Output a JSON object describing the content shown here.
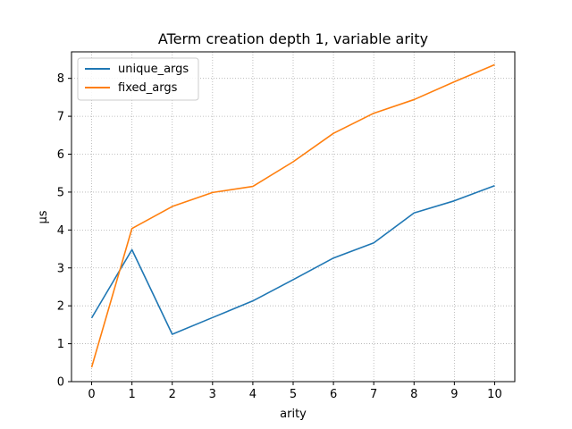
{
  "chart_data": {
    "type": "line",
    "title": "ATerm creation depth 1, variable arity",
    "xlabel": "arity",
    "ylabel": "µs",
    "x": [
      0,
      1,
      2,
      3,
      4,
      5,
      6,
      7,
      8,
      9,
      10
    ],
    "xlim": [
      -0.5,
      10.5
    ],
    "ylim": [
      0,
      8.7
    ],
    "xticks": [
      0,
      1,
      2,
      3,
      4,
      5,
      6,
      7,
      8,
      9,
      10
    ],
    "yticks": [
      0,
      1,
      2,
      3,
      4,
      5,
      6,
      7,
      8
    ],
    "grid": true,
    "legend_position": "top-left",
    "series": [
      {
        "name": "unique_args",
        "color": "#1f77b4",
        "values": [
          1.68,
          3.48,
          1.25,
          1.69,
          2.13,
          2.69,
          3.26,
          3.66,
          4.45,
          4.77,
          5.17
        ]
      },
      {
        "name": "fixed_args",
        "color": "#ff7f0e",
        "values": [
          0.38,
          4.04,
          4.62,
          4.99,
          5.15,
          5.8,
          6.55,
          7.08,
          7.44,
          7.91,
          8.36
        ]
      }
    ]
  }
}
